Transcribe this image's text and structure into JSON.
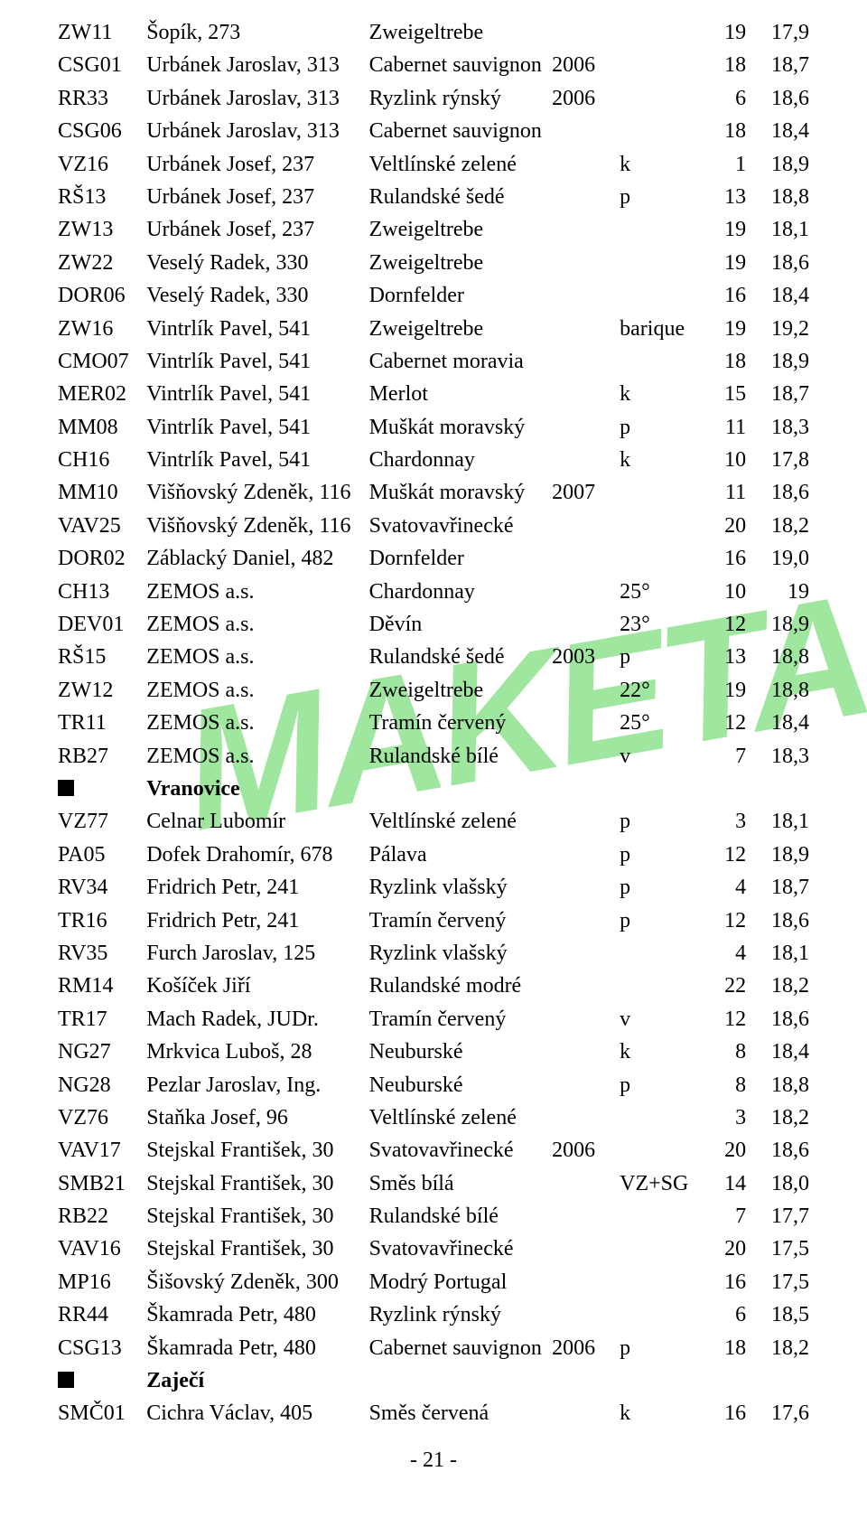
{
  "watermark": "MAKETA",
  "page_number": "- 21 -",
  "colors": {
    "watermark": "#9fe69f",
    "text": "#000000",
    "background": "#ffffff"
  },
  "sections": [
    {
      "rows": [
        [
          "ZW11",
          "Šopík, 273",
          "Zweigeltrebe",
          "",
          "",
          "19",
          "17,9"
        ],
        [
          "CSG01",
          "Urbánek Jaroslav, 313",
          "Cabernet sauvignon",
          "2006",
          "",
          "18",
          "18,7"
        ],
        [
          "RR33",
          "Urbánek Jaroslav, 313",
          "Ryzlink rýnský",
          "2006",
          "",
          "6",
          "18,6"
        ],
        [
          "CSG06",
          "Urbánek Jaroslav, 313",
          "Cabernet sauvignon",
          "",
          "",
          "18",
          "18,4"
        ],
        [
          "VZ16",
          "Urbánek Josef, 237",
          "Veltlínské zelené",
          "",
          "k",
          "1",
          "18,9"
        ],
        [
          "RŠ13",
          "Urbánek Josef, 237",
          "Rulandské šedé",
          "",
          "p",
          "13",
          "18,8"
        ],
        [
          "ZW13",
          "Urbánek Josef, 237",
          "Zweigeltrebe",
          "",
          "",
          "19",
          "18,1"
        ],
        [
          "ZW22",
          "Veselý Radek, 330",
          "Zweigeltrebe",
          "",
          "",
          "19",
          "18,6"
        ],
        [
          "DOR06",
          "Veselý Radek, 330",
          "Dornfelder",
          "",
          "",
          "16",
          "18,4"
        ],
        [
          "ZW16",
          "Vintrlík Pavel, 541",
          "Zweigeltrebe",
          "",
          "barique",
          "19",
          "19,2"
        ],
        [
          "CMO07",
          "Vintrlík Pavel, 541",
          "Cabernet moravia",
          "",
          "",
          "18",
          "18,9"
        ],
        [
          "MER02",
          "Vintrlík Pavel, 541",
          "Merlot",
          "",
          "k",
          "15",
          "18,7"
        ],
        [
          "MM08",
          "Vintrlík Pavel, 541",
          "Muškát moravský",
          "",
          "p",
          "11",
          "18,3"
        ],
        [
          "CH16",
          "Vintrlík Pavel, 541",
          "Chardonnay",
          "",
          "k",
          "10",
          "17,8"
        ],
        [
          "MM10",
          "Višňovský Zdeněk, 116",
          "Muškát moravský",
          "2007",
          "",
          "11",
          "18,6"
        ],
        [
          "VAV25",
          "Višňovský Zdeněk, 116",
          "Svatovavřinecké",
          "",
          "",
          "20",
          "18,2"
        ],
        [
          "DOR02",
          "Záblacký Daniel, 482",
          "Dornfelder",
          "",
          "",
          "16",
          "19,0"
        ],
        [
          "CH13",
          "ZEMOS a.s.",
          "Chardonnay",
          "",
          "25°",
          "10",
          "19"
        ],
        [
          "DEV01",
          "ZEMOS a.s.",
          "Děvín",
          "",
          "23°",
          "12",
          "18,9"
        ],
        [
          "RŠ15",
          "ZEMOS a.s.",
          "Rulandské šedé",
          "2003",
          "p",
          "13",
          "18,8"
        ],
        [
          "ZW12",
          "ZEMOS a.s.",
          "Zweigeltrebe",
          "",
          "22°",
          "19",
          "18,8"
        ],
        [
          "TR11",
          "ZEMOS a.s.",
          "Tramín červený",
          "",
          "25°",
          "12",
          "18,4"
        ],
        [
          "RB27",
          "ZEMOS a.s.",
          "Rulandské bílé",
          "",
          "v",
          "7",
          "18,3"
        ]
      ]
    },
    {
      "title": "Vranovice",
      "rows": [
        [
          "VZ77",
          "Celnar Lubomír",
          "Veltlínské zelené",
          "",
          "p",
          "3",
          "18,1"
        ],
        [
          "PA05",
          "Dofek Drahomír, 678",
          "Pálava",
          "",
          "p",
          "12",
          "18,9"
        ],
        [
          "RV34",
          "Fridrich Petr, 241",
          "Ryzlink vlašský",
          "",
          "p",
          "4",
          "18,7"
        ],
        [
          "TR16",
          "Fridrich Petr, 241",
          "Tramín červený",
          "",
          "p",
          "12",
          "18,6"
        ],
        [
          "RV35",
          "Furch Jaroslav, 125",
          "Ryzlink vlašský",
          "",
          "",
          "4",
          "18,1"
        ],
        [
          "RM14",
          "Košíček Jiří",
          "Rulandské modré",
          "",
          "",
          "22",
          "18,2"
        ],
        [
          "TR17",
          "Mach Radek, JUDr.",
          "Tramín červený",
          "",
          "v",
          "12",
          "18,6"
        ],
        [
          "NG27",
          "Mrkvica Luboš, 28",
          "Neuburské",
          "",
          "k",
          "8",
          "18,4"
        ],
        [
          "NG28",
          "Pezlar Jaroslav, Ing.",
          "Neuburské",
          "",
          "p",
          "8",
          "18,8"
        ],
        [
          "VZ76",
          "Staňka Josef, 96",
          "Veltlínské zelené",
          "",
          "",
          "3",
          "18,2"
        ],
        [
          "VAV17",
          "Stejskal František, 30",
          "Svatovavřinecké",
          "2006",
          "",
          "20",
          "18,6"
        ],
        [
          "SMB21",
          "Stejskal František, 30",
          "Směs bílá",
          "",
          "VZ+SG",
          "14",
          "18,0"
        ],
        [
          "RB22",
          "Stejskal František, 30",
          "Rulandské bílé",
          "",
          "",
          "7",
          "17,7"
        ],
        [
          "VAV16",
          "Stejskal František, 30",
          "Svatovavřinecké",
          "",
          "",
          "20",
          "17,5"
        ],
        [
          "MP16",
          "Šišovský Zdeněk, 300",
          "Modrý Portugal",
          "",
          "",
          "16",
          "17,5"
        ],
        [
          "RR44",
          "Škamrada Petr, 480",
          "Ryzlink rýnský",
          "",
          "",
          "6",
          "18,5"
        ],
        [
          "CSG13",
          "Škamrada Petr, 480",
          "Cabernet sauvignon",
          "2006",
          "p",
          "18",
          "18,2"
        ]
      ]
    },
    {
      "title": "Zaječí",
      "rows": [
        [
          "SMČ01",
          "Cichra Václav, 405",
          "Směs červená",
          "",
          "k",
          "16",
          "17,6"
        ]
      ]
    }
  ]
}
